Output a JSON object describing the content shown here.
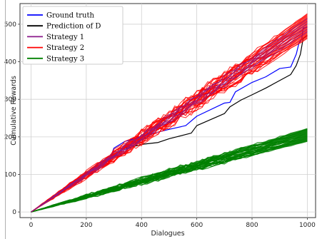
{
  "chart_data": {
    "type": "line",
    "title": "",
    "xlabel": "Dialogues",
    "ylabel": "Cumulative Rewards",
    "xlim": [
      -40,
      1030
    ],
    "ylim": [
      -15,
      555
    ],
    "xticks": [
      0,
      200,
      400,
      600,
      800,
      1000
    ],
    "yticks": [
      0,
      100,
      200,
      300,
      400,
      500
    ],
    "grid": true,
    "legend_position": "top-left",
    "colors": {
      "ground_truth": "#0000ff",
      "prediction": "#000000",
      "strategy1": "#8b1a8b",
      "strategy2": "#ff0000",
      "strategy3": "#008000"
    },
    "series": [
      {
        "name": "Ground truth",
        "color": "#0000ff",
        "x": [
          0,
          100,
          200,
          250,
          280,
          300,
          340,
          360,
          400,
          500,
          560,
          600,
          700,
          720,
          740,
          800,
          850,
          900,
          940,
          960,
          970,
          980,
          985,
          1000
        ],
        "y": [
          0,
          50,
          100,
          122,
          130,
          170,
          188,
          192,
          202,
          220,
          230,
          255,
          290,
          292,
          320,
          345,
          360,
          382,
          386,
          420,
          450,
          460,
          490,
          492
        ]
      },
      {
        "name": "Prediction of D",
        "color": "#000000",
        "x": [
          0,
          100,
          200,
          300,
          330,
          360,
          400,
          460,
          500,
          580,
          600,
          700,
          720,
          760,
          800,
          850,
          900,
          940,
          960,
          975,
          985,
          1000
        ],
        "y": [
          0,
          50,
          100,
          150,
          168,
          172,
          180,
          185,
          195,
          210,
          230,
          262,
          280,
          298,
          312,
          330,
          350,
          366,
          390,
          420,
          462,
          470
        ]
      },
      {
        "name": "Strategy 1",
        "color": "#8b1a8b",
        "runs": 6,
        "x": [
          0,
          1000
        ],
        "y_band_end": [
          480,
          515
        ]
      },
      {
        "name": "Strategy 2",
        "color": "#ff0000",
        "runs": 30,
        "x": [
          0,
          1000
        ],
        "y_band_end": [
          462,
          528
        ]
      },
      {
        "name": "Strategy 3",
        "color": "#008000",
        "runs": 30,
        "x": [
          0,
          1000
        ],
        "y_band_end": [
          188,
          222
        ]
      }
    ]
  }
}
